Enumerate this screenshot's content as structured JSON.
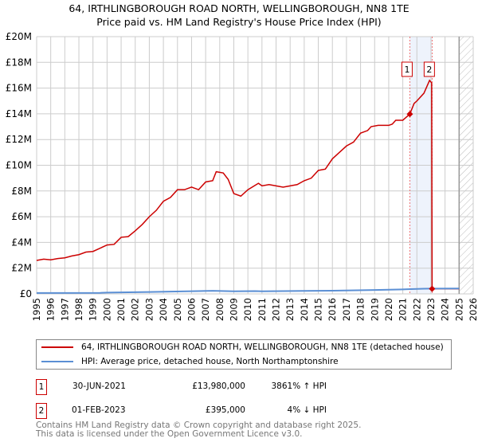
{
  "title": "64, IRTHLINGBOROUGH ROAD NORTH, WELLINGBOROUGH, NN8 1TE",
  "subtitle": "Price paid vs. HM Land Registry's House Price Index (HPI)",
  "chart_data": {
    "type": "line",
    "title": "64, IRTHLINGBOROUGH ROAD NORTH, WELLINGBOROUGH, NN8 1TE",
    "subtitle": "Price paid vs. HM Land Registry's House Price Index (HPI)",
    "xlim": [
      1995,
      2026
    ],
    "ylim": [
      0,
      20000000
    ],
    "x_ticks": [
      "1995",
      "1996",
      "1997",
      "1998",
      "1999",
      "2000",
      "2001",
      "2002",
      "2003",
      "2004",
      "2005",
      "2006",
      "2007",
      "2008",
      "2009",
      "2010",
      "2011",
      "2012",
      "2013",
      "2014",
      "2015",
      "2016",
      "2017",
      "2018",
      "2019",
      "2020",
      "2021",
      "2022",
      "2023",
      "2024",
      "2025",
      "2026"
    ],
    "y_ticks": [
      {
        "v": 0,
        "label": "£0"
      },
      {
        "v": 2000000,
        "label": "£2M"
      },
      {
        "v": 4000000,
        "label": "£4M"
      },
      {
        "v": 6000000,
        "label": "£6M"
      },
      {
        "v": 8000000,
        "label": "£8M"
      },
      {
        "v": 10000000,
        "label": "£10M"
      },
      {
        "v": 12000000,
        "label": "£12M"
      },
      {
        "v": 14000000,
        "label": "£14M"
      },
      {
        "v": 16000000,
        "label": "£16M"
      },
      {
        "v": 18000000,
        "label": "£18M"
      },
      {
        "v": 20000000,
        "label": "£20M"
      }
    ],
    "grid": true,
    "series": [
      {
        "name": "64, IRTHLINGBOROUGH ROAD NORTH, WELLINGBOROUGH, NN8 1TE (detached house)",
        "color": "#cc0000",
        "x": [
          1995,
          1995.5,
          1996,
          1996.5,
          1997,
          1997.5,
          1998,
          1998.5,
          1999,
          1999.5,
          2000,
          2000.5,
          2001,
          2001.5,
          2002,
          2002.5,
          2003,
          2003.5,
          2004,
          2004.5,
          2005,
          2005.5,
          2006,
          2006.5,
          2007,
          2007.5,
          2007.75,
          2008.25,
          2008.6,
          2009,
          2009.5,
          2010,
          2010.75,
          2011,
          2011.5,
          2012,
          2012.5,
          2013,
          2013.5,
          2014,
          2014.5,
          2015,
          2015.5,
          2016,
          2016.5,
          2017,
          2017.5,
          2018,
          2018.5,
          2018.75,
          2019.25,
          2019.5,
          2020,
          2020.25,
          2020.5,
          2021,
          2021.5,
          2021.8,
          2022,
          2022.5,
          2022.9,
          2023.05,
          2023.08,
          2025
        ],
        "y": [
          2.6,
          2.7,
          2.65,
          2.75,
          2.8,
          2.95,
          3.05,
          3.25,
          3.3,
          3.55,
          3.8,
          3.85,
          4.4,
          4.45,
          4.9,
          5.4,
          6.0,
          6.5,
          7.2,
          7.5,
          8.1,
          8.1,
          8.3,
          8.1,
          8.7,
          8.8,
          9.5,
          9.4,
          8.9,
          7.8,
          7.6,
          8.1,
          8.6,
          8.4,
          8.5,
          8.4,
          8.3,
          8.4,
          8.5,
          8.8,
          9.0,
          9.6,
          9.7,
          10.5,
          11.0,
          11.5,
          11.8,
          12.5,
          12.7,
          13.0,
          13.1,
          13.1,
          13.1,
          13.2,
          13.5,
          13.5,
          13.98,
          14.8,
          15.0,
          15.6,
          16.6,
          16.4,
          0.395,
          0.395
        ],
        "y_unit": "£M"
      },
      {
        "name": "HPI: Average price, detached house, North Northamptonshire",
        "color": "#5b8fd4",
        "x": [
          1995,
          1999.5,
          2000,
          2003,
          2007.5,
          2009,
          2010.5,
          2011,
          2014,
          2016,
          2019,
          2021,
          2022.5,
          2023,
          2025
        ],
        "y": [
          0.07,
          0.08,
          0.1,
          0.15,
          0.24,
          0.2,
          0.22,
          0.2,
          0.23,
          0.25,
          0.3,
          0.35,
          0.4,
          0.41,
          0.42
        ],
        "y_unit": "£M"
      }
    ],
    "annotations": [
      {
        "label": "1",
        "x": 2021.5,
        "price": 13980000
      },
      {
        "label": "2",
        "x": 2023.08,
        "price": 395000
      }
    ],
    "highlight_range": [
      2021.5,
      2023.08
    ],
    "hatched_from": 2025
  },
  "legend": {
    "property": "64, IRTHLINGBOROUGH ROAD NORTH, WELLINGBOROUGH, NN8 1TE (detached house)",
    "hpi": "HPI: Average price, detached house, North Northamptonshire"
  },
  "transactions": [
    {
      "num": "1",
      "date": "30-JUN-2021",
      "price": "£13,980,000",
      "hpi": "3861% ↑ HPI"
    },
    {
      "num": "2",
      "date": "01-FEB-2023",
      "price": "£395,000",
      "hpi": "4% ↓ HPI"
    }
  ],
  "footer": [
    "Contains HM Land Registry data © Crown copyright and database right 2025.",
    "This data is licensed under the Open Government Licence v3.0."
  ]
}
